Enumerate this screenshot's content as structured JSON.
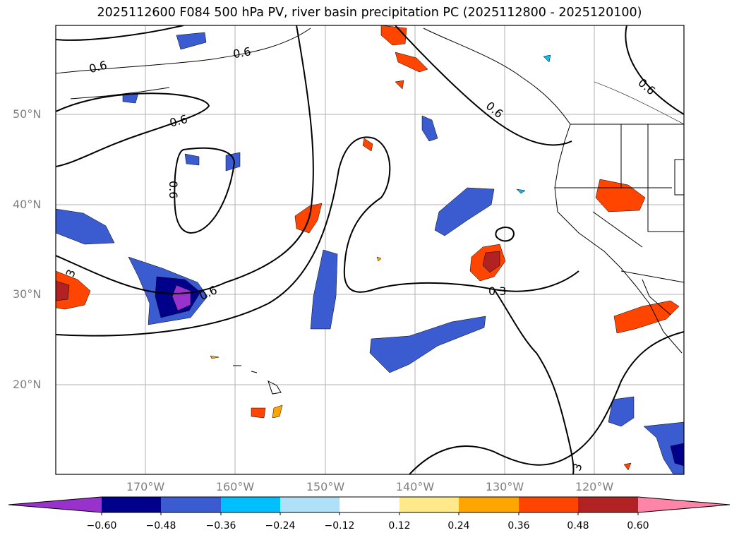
{
  "title": "2025112600 F084 500 hPa PV, river basin precipitation PC (2025112800 - 2025120100)",
  "lat_labels": [
    "50°N",
    "40°N",
    "30°N",
    "20°N"
  ],
  "lon_labels": [
    "170°W",
    "160°W",
    "150°W",
    "140°W",
    "130°W",
    "120°W"
  ],
  "contour_labels": {
    "a": "0.6",
    "b": "0.6",
    "c": "0.6",
    "d": "0.6",
    "e": "0.6",
    "f": "0.6",
    "g": "0.6",
    "h": "0.3",
    "i": "3",
    "j": "3"
  },
  "colorbar": {
    "ticks": [
      "−0.60",
      "−0.48",
      "−0.36",
      "−0.24",
      "−0.12",
      "0.12",
      "0.24",
      "0.36",
      "0.48",
      "0.60"
    ],
    "colors": [
      "#9932cc",
      "#00008b",
      "#3b5bd0",
      "#00bfff",
      "#aee0f8",
      "#ffffff",
      "#ffe98a",
      "#ffa500",
      "#ff4500",
      "#b22222",
      "#ff85a8"
    ]
  }
}
